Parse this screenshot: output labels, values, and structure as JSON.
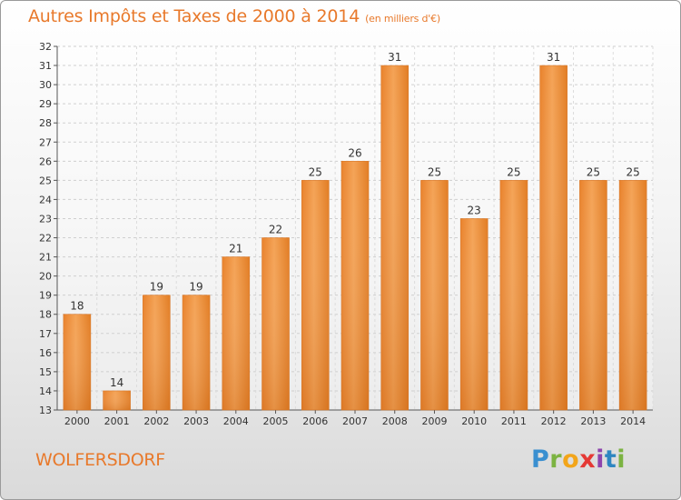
{
  "chart_data": {
    "type": "bar",
    "title": "Autres Impôts et Taxes de 2000 à 2014",
    "subtitle": "(en milliers d'€)",
    "categories": [
      "2000",
      "2001",
      "2002",
      "2003",
      "2004",
      "2005",
      "2006",
      "2007",
      "2008",
      "2009",
      "2010",
      "2011",
      "2012",
      "2013",
      "2014"
    ],
    "values": [
      18,
      14,
      19,
      19,
      21,
      22,
      25,
      26,
      31,
      25,
      23,
      25,
      31,
      25,
      25
    ],
    "ylim": [
      13,
      32
    ],
    "yticks": [
      13,
      14,
      15,
      16,
      17,
      18,
      19,
      20,
      21,
      22,
      23,
      24,
      25,
      26,
      27,
      28,
      29,
      30,
      31,
      32
    ],
    "grid": true,
    "bar_color": "#f0923a"
  },
  "location": "WOLFERSDORF",
  "brand": {
    "letters": [
      "P",
      "r",
      "o",
      "x",
      "i",
      "t",
      "i"
    ]
  }
}
